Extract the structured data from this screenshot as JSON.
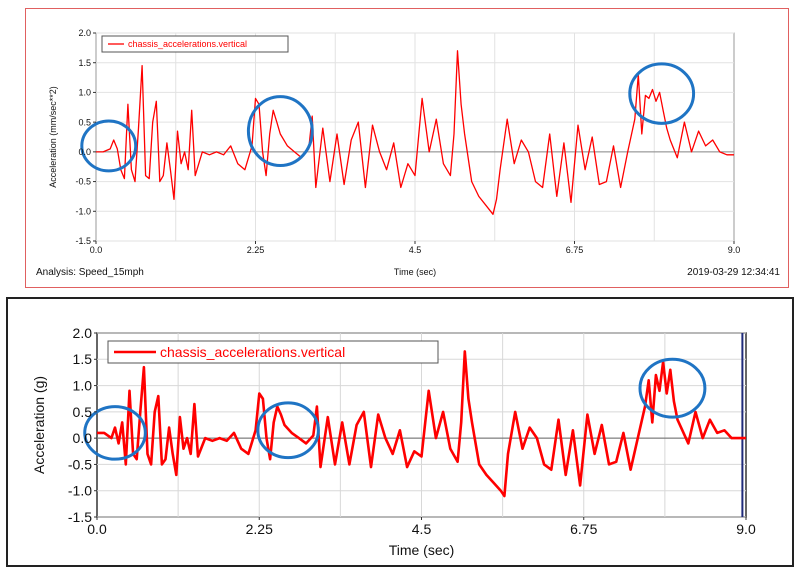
{
  "chart_data": [
    {
      "type": "line",
      "series": [
        {
          "name": "chassis_accelerations.vertical",
          "color": "#ff0000"
        }
      ],
      "xlabel": "Time (sec)",
      "ylabel": "Acceleration (mm/sec**2)",
      "xlim": [
        0,
        9
      ],
      "ylim": [
        -1.5,
        2.0
      ],
      "xticks": [
        "0.0",
        "2.25",
        "4.5",
        "6.75",
        "9.0"
      ],
      "yticks": [
        "2.0",
        "1.5",
        "1.0",
        "0.5",
        "0.0",
        "-0.5",
        "-1.0",
        "-1.5"
      ],
      "grid": true,
      "legend": "top-left",
      "footer": {
        "analysis": "Analysis:  Speed_15mph",
        "timestamp": "2019-03-29 12:34:41"
      },
      "circles": [
        {
          "x": 0.18,
          "y": 0.1,
          "rx": 0.38,
          "ry": 0.42
        },
        {
          "x": 2.6,
          "y": 0.35,
          "rx": 0.45,
          "ry": 0.58
        },
        {
          "x": 7.98,
          "y": 0.98,
          "rx": 0.45,
          "ry": 0.5
        }
      ],
      "x": [
        0.0,
        0.1,
        0.2,
        0.25,
        0.3,
        0.35,
        0.4,
        0.45,
        0.5,
        0.55,
        0.6,
        0.65,
        0.7,
        0.75,
        0.8,
        0.85,
        0.9,
        0.95,
        1.0,
        1.05,
        1.1,
        1.15,
        1.2,
        1.25,
        1.3,
        1.35,
        1.4,
        1.5,
        1.6,
        1.7,
        1.8,
        1.9,
        2.0,
        2.1,
        2.2,
        2.25,
        2.3,
        2.35,
        2.4,
        2.45,
        2.5,
        2.55,
        2.6,
        2.7,
        2.8,
        2.9,
        3.0,
        3.05,
        3.1,
        3.2,
        3.3,
        3.4,
        3.5,
        3.6,
        3.7,
        3.8,
        3.9,
        4.0,
        4.1,
        4.2,
        4.3,
        4.4,
        4.5,
        4.6,
        4.7,
        4.8,
        4.9,
        5.0,
        5.05,
        5.1,
        5.15,
        5.2,
        5.3,
        5.4,
        5.5,
        5.6,
        5.65,
        5.7,
        5.8,
        5.9,
        6.0,
        6.1,
        6.2,
        6.3,
        6.4,
        6.5,
        6.6,
        6.7,
        6.8,
        6.9,
        7.0,
        7.1,
        7.2,
        7.3,
        7.4,
        7.5,
        7.6,
        7.65,
        7.7,
        7.75,
        7.8,
        7.85,
        7.9,
        7.95,
        8.0,
        8.05,
        8.1,
        8.2,
        8.3,
        8.4,
        8.5,
        8.6,
        8.7,
        8.8,
        8.9,
        9.0
      ],
      "y": [
        0.0,
        0.0,
        0.05,
        0.2,
        0.05,
        -0.3,
        -0.45,
        0.8,
        -0.3,
        -0.5,
        0.4,
        1.45,
        -0.4,
        -0.45,
        0.5,
        0.85,
        -0.5,
        -0.4,
        0.15,
        -0.3,
        -0.8,
        0.35,
        -0.2,
        0.0,
        -0.3,
        0.7,
        -0.4,
        0.0,
        -0.05,
        0.0,
        -0.05,
        0.1,
        -0.2,
        -0.3,
        0.1,
        0.9,
        0.8,
        0.0,
        -0.4,
        0.3,
        0.7,
        0.5,
        0.3,
        0.1,
        0.0,
        -0.1,
        0.05,
        0.6,
        -0.6,
        0.4,
        -0.5,
        0.3,
        -0.55,
        0.2,
        0.5,
        -0.6,
        0.45,
        0.0,
        -0.3,
        0.15,
        -0.6,
        -0.2,
        -0.4,
        0.9,
        0.0,
        0.55,
        -0.2,
        -0.4,
        0.3,
        1.7,
        0.8,
        0.3,
        -0.5,
        -0.75,
        -0.9,
        -1.05,
        -0.8,
        -0.3,
        0.55,
        -0.2,
        0.2,
        0.0,
        -0.5,
        -0.6,
        0.3,
        -0.75,
        0.15,
        -0.85,
        0.45,
        -0.3,
        0.25,
        -0.55,
        -0.5,
        0.1,
        -0.6,
        0.0,
        0.55,
        1.3,
        0.3,
        0.95,
        0.9,
        1.05,
        0.85,
        1.0,
        0.7,
        0.4,
        0.2,
        -0.1,
        0.5,
        0.0,
        0.35,
        0.1,
        0.2,
        0.0,
        -0.05,
        -0.05
      ]
    },
    {
      "type": "line",
      "series": [
        {
          "name": "chassis_accelerations.vertical",
          "color": "#ff0000"
        }
      ],
      "xlabel": "Time (sec)",
      "ylabel": "Acceleration (g)",
      "xlim": [
        0,
        9
      ],
      "ylim": [
        -1.5,
        2.0
      ],
      "xticks": [
        "0.0",
        "2.25",
        "4.5",
        "6.75",
        "9.0"
      ],
      "yticks": [
        "2.0",
        "1.5",
        "1.0",
        "0.5",
        "0.0",
        "-0.5",
        "-1.0",
        "-1.5"
      ],
      "grid": true,
      "legend": "top-left",
      "circles": [
        {
          "x": 0.25,
          "y": 0.1,
          "rx": 0.42,
          "ry": 0.5
        },
        {
          "x": 2.65,
          "y": 0.15,
          "rx": 0.42,
          "ry": 0.52
        },
        {
          "x": 7.98,
          "y": 0.95,
          "rx": 0.45,
          "ry": 0.55
        }
      ],
      "cursor_x": 8.95,
      "x": [
        0.0,
        0.1,
        0.2,
        0.25,
        0.3,
        0.35,
        0.4,
        0.45,
        0.5,
        0.55,
        0.6,
        0.65,
        0.7,
        0.75,
        0.8,
        0.85,
        0.9,
        0.95,
        1.0,
        1.05,
        1.1,
        1.15,
        1.2,
        1.25,
        1.3,
        1.35,
        1.4,
        1.5,
        1.6,
        1.7,
        1.8,
        1.9,
        2.0,
        2.1,
        2.2,
        2.25,
        2.3,
        2.35,
        2.4,
        2.45,
        2.5,
        2.55,
        2.6,
        2.7,
        2.8,
        2.9,
        3.0,
        3.05,
        3.1,
        3.2,
        3.3,
        3.4,
        3.5,
        3.6,
        3.7,
        3.8,
        3.9,
        4.0,
        4.1,
        4.2,
        4.3,
        4.4,
        4.5,
        4.6,
        4.7,
        4.8,
        4.9,
        5.0,
        5.05,
        5.1,
        5.15,
        5.2,
        5.3,
        5.4,
        5.5,
        5.6,
        5.65,
        5.7,
        5.8,
        5.9,
        6.0,
        6.1,
        6.2,
        6.3,
        6.4,
        6.5,
        6.6,
        6.7,
        6.8,
        6.9,
        7.0,
        7.1,
        7.2,
        7.3,
        7.4,
        7.5,
        7.6,
        7.65,
        7.7,
        7.75,
        7.8,
        7.85,
        7.9,
        7.95,
        8.0,
        8.05,
        8.1,
        8.2,
        8.3,
        8.4,
        8.5,
        8.6,
        8.7,
        8.8,
        8.9,
        9.0
      ],
      "y": [
        0.1,
        0.1,
        0.0,
        0.2,
        -0.1,
        0.3,
        -0.5,
        0.9,
        -0.3,
        -0.4,
        0.5,
        1.35,
        -0.3,
        -0.5,
        0.5,
        0.8,
        -0.5,
        -0.4,
        0.2,
        -0.3,
        -0.7,
        0.4,
        -0.2,
        0.0,
        -0.3,
        0.65,
        -0.35,
        0.0,
        -0.05,
        0.0,
        -0.05,
        0.1,
        -0.2,
        -0.3,
        0.15,
        0.85,
        0.75,
        0.0,
        -0.4,
        0.3,
        0.6,
        0.45,
        0.25,
        0.1,
        0.0,
        -0.1,
        0.05,
        0.6,
        -0.55,
        0.4,
        -0.5,
        0.3,
        -0.5,
        0.25,
        0.5,
        -0.55,
        0.45,
        0.0,
        -0.3,
        0.15,
        -0.55,
        -0.25,
        -0.35,
        0.9,
        0.0,
        0.5,
        -0.2,
        -0.45,
        0.3,
        1.65,
        0.75,
        0.3,
        -0.5,
        -0.7,
        -0.85,
        -1.0,
        -1.1,
        -0.3,
        0.5,
        -0.2,
        0.2,
        0.0,
        -0.5,
        -0.6,
        0.35,
        -0.7,
        0.15,
        -0.9,
        0.45,
        -0.3,
        0.25,
        -0.5,
        -0.45,
        0.1,
        -0.6,
        0.0,
        0.6,
        1.1,
        0.3,
        1.2,
        0.9,
        1.45,
        0.85,
        1.3,
        0.7,
        0.35,
        0.2,
        -0.1,
        0.5,
        0.0,
        0.35,
        0.1,
        0.15,
        0.0,
        0.0,
        0.0
      ]
    }
  ]
}
